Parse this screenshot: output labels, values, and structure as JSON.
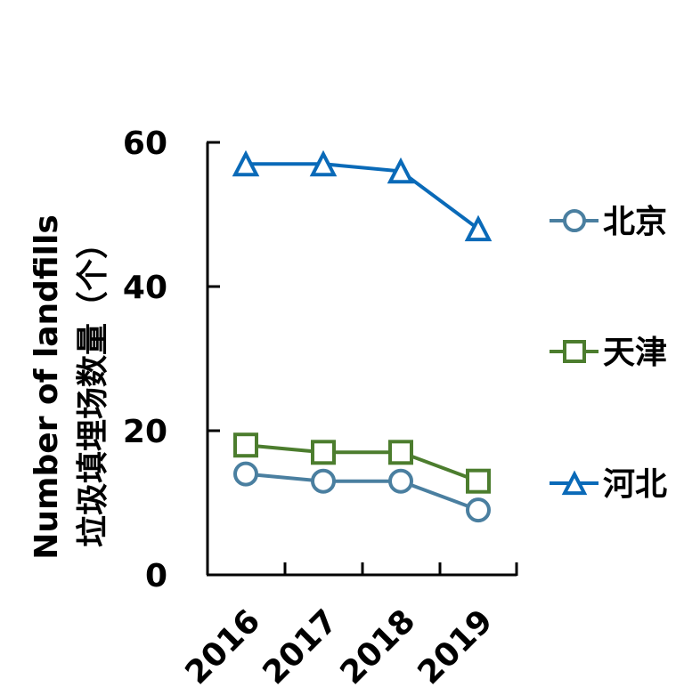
{
  "chart_data": {
    "type": "line",
    "x": [
      "2016",
      "2017",
      "2018",
      "2019"
    ],
    "ylabel_line1": "Number of landfills",
    "ylabel_line2": "垃圾填埋场数量（个）",
    "ylim": [
      0,
      60
    ],
    "yticks": [
      "0",
      "20",
      "40",
      "60"
    ],
    "grid": false,
    "legend_position": "right",
    "series": [
      {
        "name": "北京",
        "values": [
          14,
          13,
          13,
          9
        ],
        "marker": "circle",
        "color": "#4a7fa0"
      },
      {
        "name": "天津",
        "values": [
          18,
          17,
          17,
          13
        ],
        "marker": "square",
        "color": "#4c7d2e"
      },
      {
        "name": "河北",
        "values": [
          57,
          57,
          56,
          48
        ],
        "marker": "triangle",
        "color": "#0a6ab8"
      }
    ]
  }
}
